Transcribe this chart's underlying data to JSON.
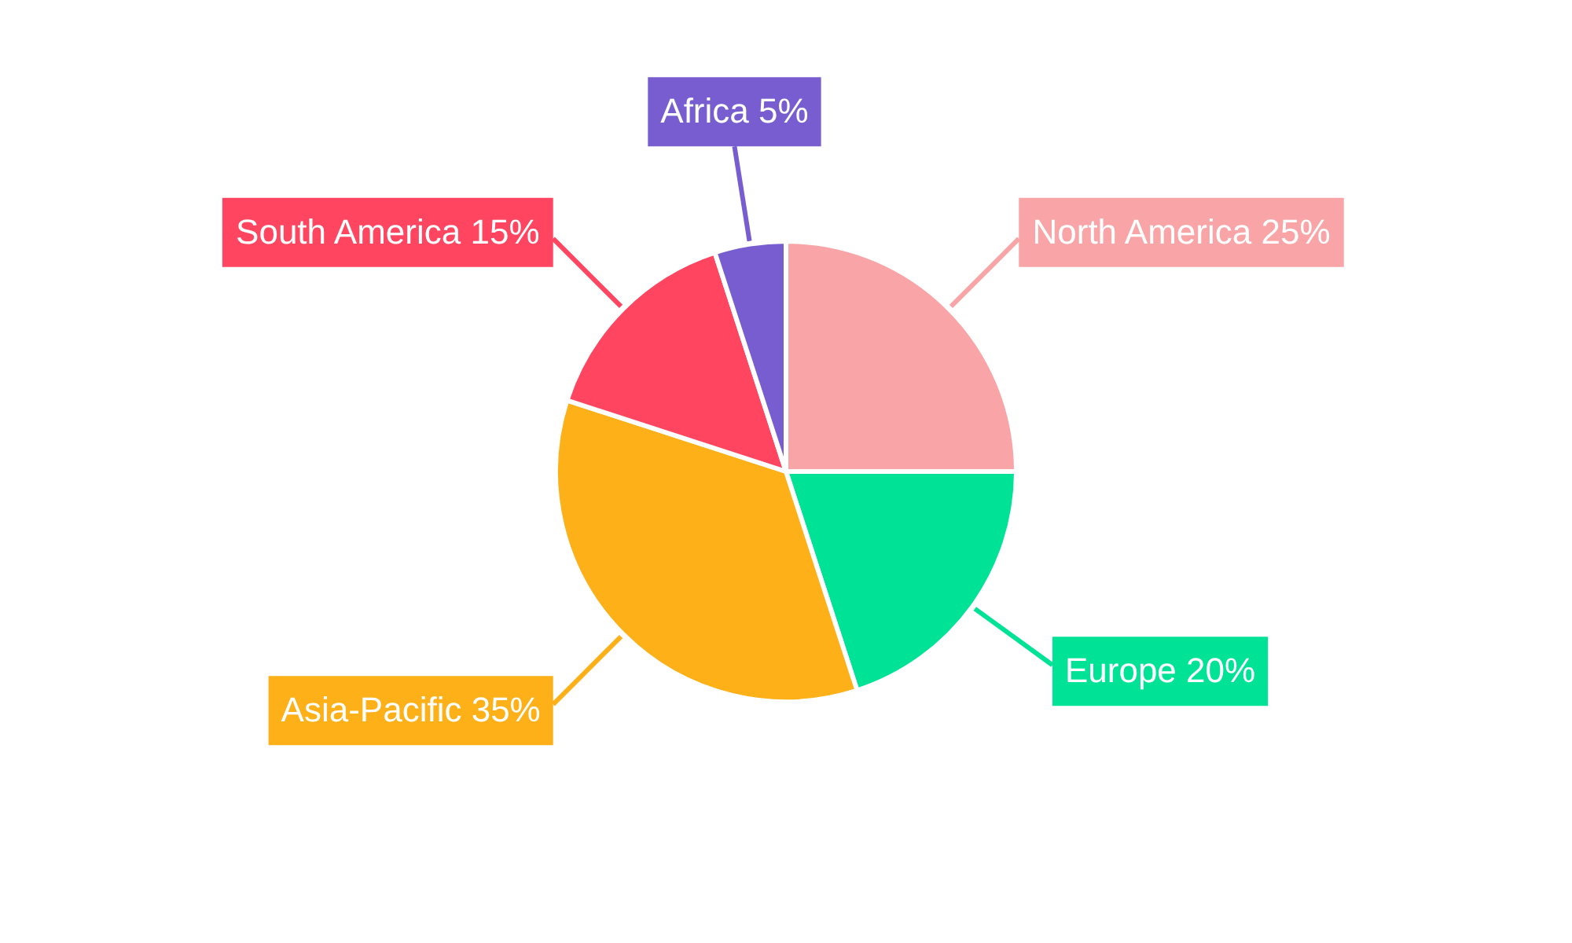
{
  "chart_data": {
    "type": "pie",
    "categories": [
      "North America",
      "Europe",
      "Asia-Pacific",
      "South America",
      "Africa"
    ],
    "values": [
      25,
      20,
      35,
      15,
      5
    ],
    "value_labels": [
      "25%",
      "20%",
      "35%",
      "15%",
      "5%"
    ],
    "colors": [
      "#f9a5a8",
      "#00e396",
      "#feb019",
      "#ff4560",
      "#775dd0"
    ],
    "legend": false
  }
}
